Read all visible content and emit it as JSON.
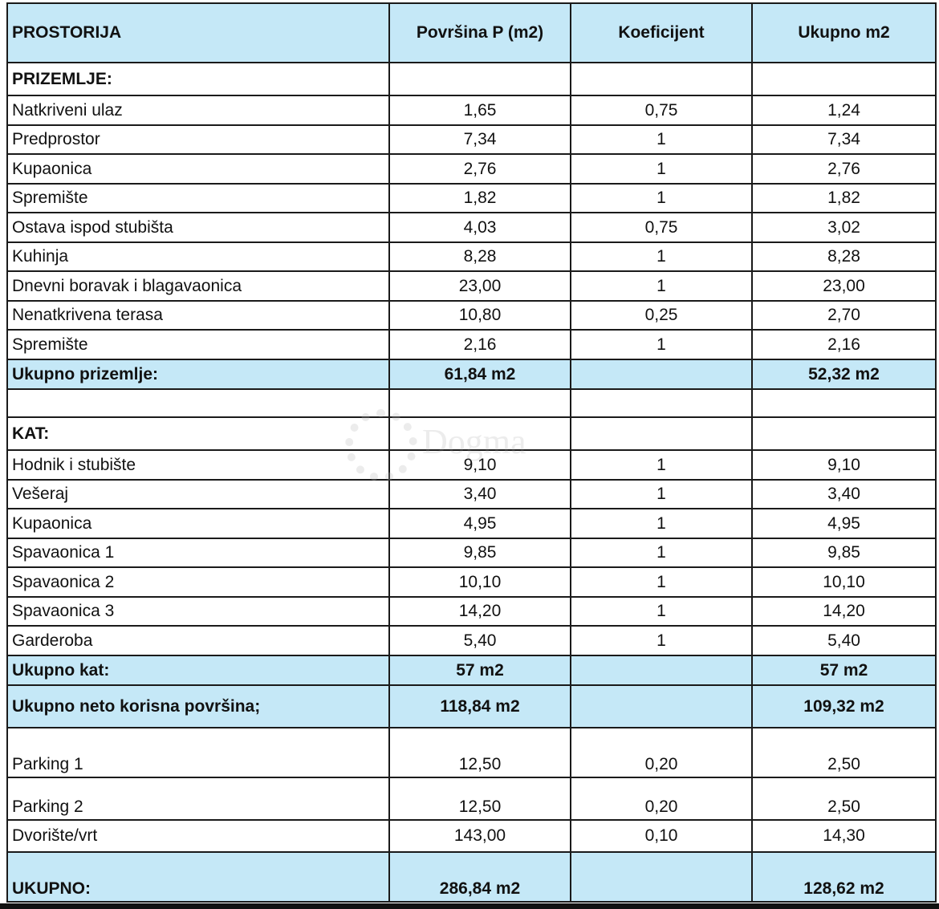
{
  "header": [
    "PROSTORIJA",
    "Površina P (m2)",
    "Koeficijent",
    "Ukupno m2"
  ],
  "rows": [
    {
      "type": "section",
      "cells": [
        "PRIZEMLJE:",
        "",
        "",
        ""
      ]
    },
    {
      "type": "item",
      "cells": [
        "Natkriveni ulaz",
        "1,65",
        "0,75",
        "1,24"
      ]
    },
    {
      "type": "item",
      "cells": [
        "Predprostor",
        "7,34",
        "1",
        "7,34"
      ]
    },
    {
      "type": "item",
      "cells": [
        "Kupaonica",
        "2,76",
        "1",
        "2,76"
      ]
    },
    {
      "type": "item",
      "cells": [
        "Spremište",
        "1,82",
        "1",
        "1,82"
      ]
    },
    {
      "type": "item",
      "cells": [
        "Ostava ispod stubišta",
        "4,03",
        "0,75",
        "3,02"
      ]
    },
    {
      "type": "item",
      "cells": [
        "Kuhinja",
        "8,28",
        "1",
        "8,28"
      ]
    },
    {
      "type": "item",
      "cells": [
        "Dnevni boravak i blagavaonica",
        "23,00",
        "1",
        "23,00"
      ]
    },
    {
      "type": "item",
      "cells": [
        "Nenatkrivena terasa",
        "10,80",
        "0,25",
        "2,70"
      ]
    },
    {
      "type": "item",
      "cells": [
        "Spremište",
        "2,16",
        "1",
        "2,16"
      ]
    },
    {
      "type": "subtotal",
      "cells": [
        "Ukupno prizemlje:",
        "61,84 m2",
        "",
        "52,32 m2"
      ]
    },
    {
      "type": "blank",
      "cells": [
        "",
        "",
        "",
        ""
      ]
    },
    {
      "type": "section",
      "cells": [
        "KAT:",
        "",
        "",
        ""
      ]
    },
    {
      "type": "item",
      "cells": [
        "Hodnik i stubište",
        "9,10",
        "1",
        "9,10"
      ]
    },
    {
      "type": "item",
      "cells": [
        "Vešeraj",
        "3,40",
        "1",
        "3,40"
      ]
    },
    {
      "type": "item",
      "cells": [
        "Kupaonica",
        "4,95",
        "1",
        "4,95"
      ]
    },
    {
      "type": "item",
      "cells": [
        "Spavaonica 1",
        "9,85",
        "1",
        "9,85"
      ]
    },
    {
      "type": "item",
      "cells": [
        "Spavaonica 2",
        "10,10",
        "1",
        "10,10"
      ]
    },
    {
      "type": "item",
      "cells": [
        "Spavaonica 3",
        "14,20",
        "1",
        "14,20"
      ]
    },
    {
      "type": "item",
      "cells": [
        "Garderoba",
        "5,40",
        "1",
        "5,40"
      ]
    },
    {
      "type": "subtotal",
      "cells": [
        "Ukupno kat:",
        "57 m2",
        "",
        "57 m2"
      ]
    },
    {
      "type": "subtotal",
      "cells": [
        "Ukupno neto korisna površina;",
        "118,84 m2",
        "",
        "109,32 m2"
      ]
    },
    {
      "type": "item",
      "cells": [
        "Parking 1",
        "12,50",
        "0,20",
        "2,50"
      ]
    },
    {
      "type": "item",
      "cells": [
        "Parking 2",
        "12,50",
        "0,20",
        "2,50"
      ]
    },
    {
      "type": "item",
      "cells": [
        "Dvorište/vrt",
        "143,00",
        "0,10",
        "14,30"
      ]
    },
    {
      "type": "total",
      "cells": [
        "UKUPNO:",
        "286,84 m2",
        "",
        "128,62 m2"
      ]
    }
  ],
  "watermark": "Dogma",
  "colors": {
    "header_fill": "#c5e8f7",
    "border": "#1a1a1a"
  }
}
